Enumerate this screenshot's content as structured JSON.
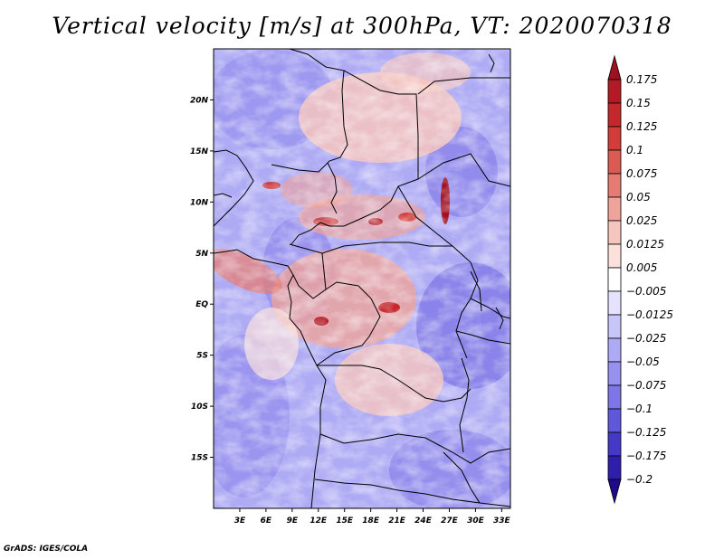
{
  "title": "Vertical velocity [m/s] at 300hPa, VT: 2020070318",
  "footer": "GrADS: IGES/COLA",
  "chart_data": {
    "type": "heatmap",
    "title": "Vertical velocity [m/s] at 300hPa, VT: 2020070318",
    "variable": "Vertical velocity",
    "units": "m/s",
    "level": "300hPa",
    "valid_time": "2020070318",
    "xlim": [
      0,
      34
    ],
    "ylim": [
      -20,
      25
    ],
    "x_ticks": [
      {
        "value": 3,
        "label": "3E"
      },
      {
        "value": 6,
        "label": "6E"
      },
      {
        "value": 9,
        "label": "9E"
      },
      {
        "value": 12,
        "label": "12E"
      },
      {
        "value": 15,
        "label": "15E"
      },
      {
        "value": 18,
        "label": "18E"
      },
      {
        "value": 21,
        "label": "21E"
      },
      {
        "value": 24,
        "label": "24E"
      },
      {
        "value": 27,
        "label": "27E"
      },
      {
        "value": 30,
        "label": "30E"
      },
      {
        "value": 33,
        "label": "33E"
      }
    ],
    "y_ticks": [
      {
        "value": 20,
        "label": "20N"
      },
      {
        "value": 15,
        "label": "15N"
      },
      {
        "value": 10,
        "label": "10N"
      },
      {
        "value": 5,
        "label": "5N"
      },
      {
        "value": 0,
        "label": "EQ"
      },
      {
        "value": -5,
        "label": "5S"
      },
      {
        "value": -10,
        "label": "10S"
      },
      {
        "value": -15,
        "label": "15S"
      }
    ],
    "colorbar": {
      "labels": [
        "0.175",
        "0.15",
        "0.125",
        "0.1",
        "0.075",
        "0.05",
        "0.025",
        "0.0125",
        "0.005",
        "−0.005",
        "−0.0125",
        "−0.025",
        "−0.05",
        "−0.075",
        "−0.1",
        "−0.125",
        "−0.175",
        "−0.2"
      ],
      "colors": [
        "#a01020",
        "#b41a26",
        "#c4282c",
        "#d23c3a",
        "#dc5a54",
        "#e47c74",
        "#eea49a",
        "#f6c6be",
        "#fbe0dc",
        "#ffffff",
        "#e4e2fc",
        "#c8c6f8",
        "#aeaaf4",
        "#9690ee",
        "#7e76e6",
        "#6058da",
        "#4438c8",
        "#2e1eaa",
        "#1e0a8a"
      ]
    }
  }
}
